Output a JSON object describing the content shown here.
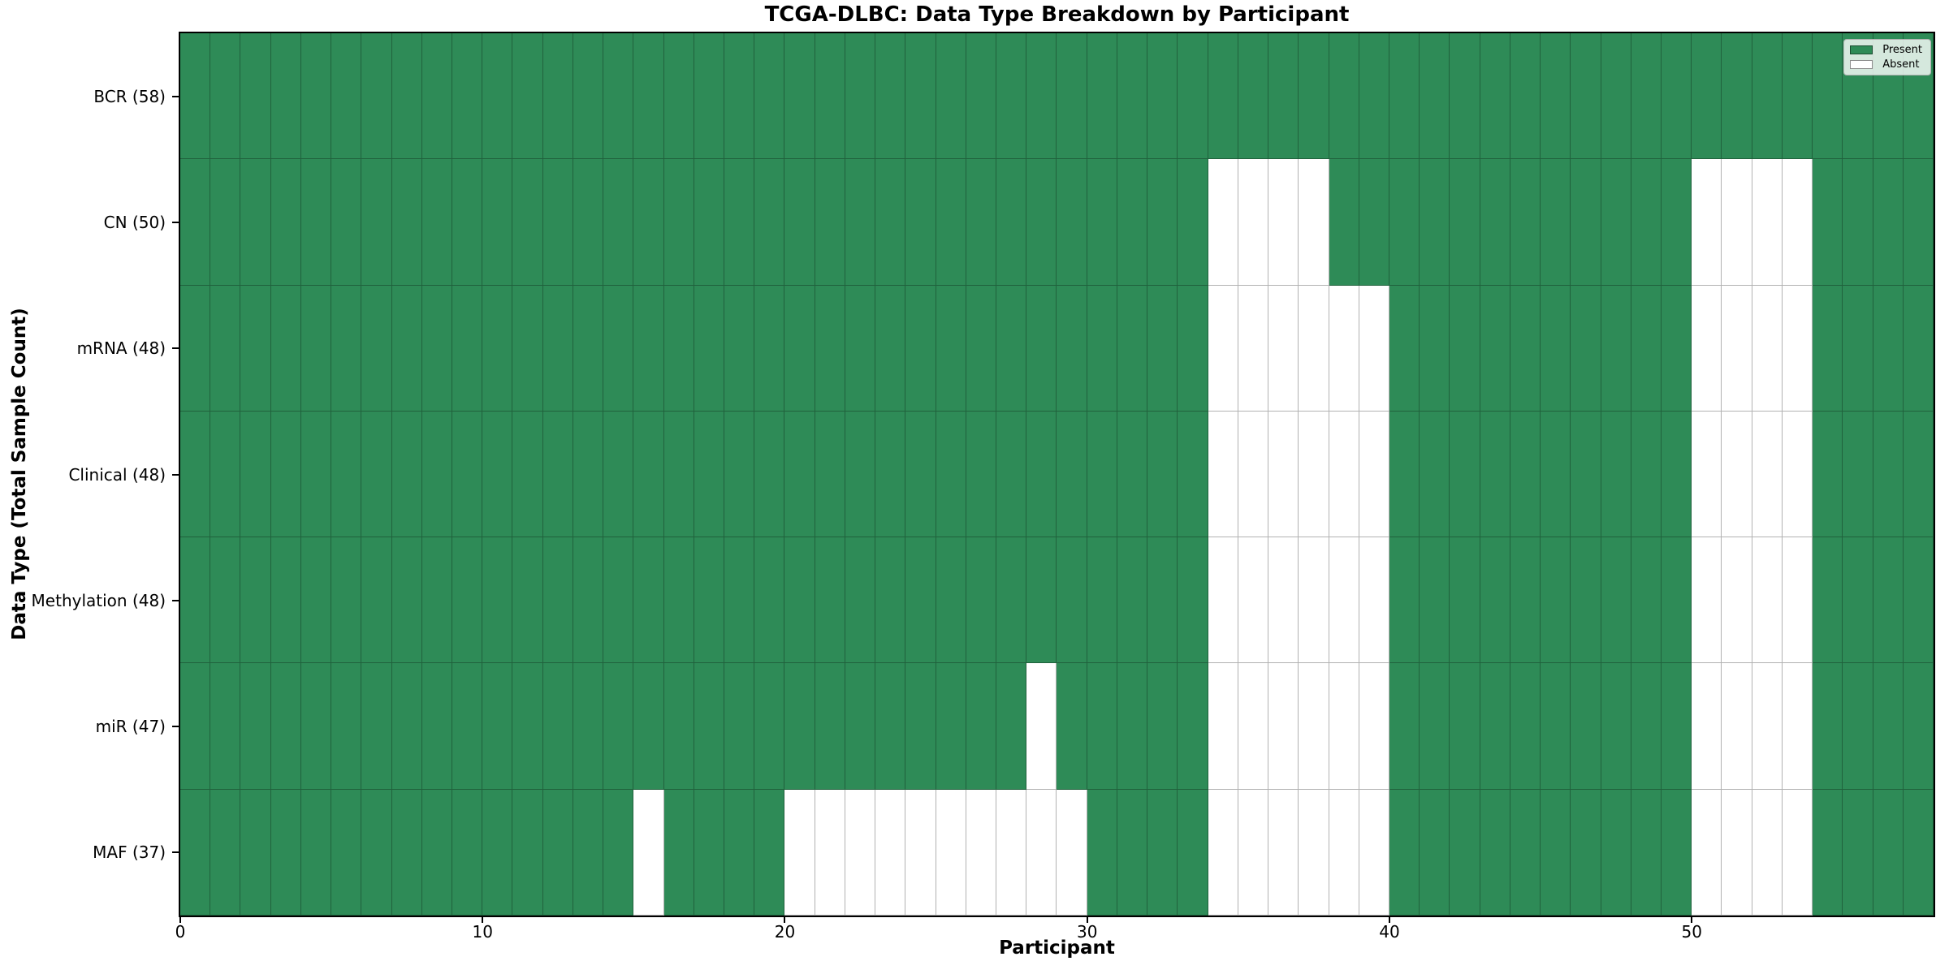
{
  "chart_data": {
    "type": "heatmap",
    "title": "TCGA-DLBC: Data Type Breakdown by Participant",
    "xlabel": "Participant",
    "ylabel": "Data Type (Total Sample Count)",
    "x_ticks": [
      0,
      10,
      20,
      30,
      40,
      50
    ],
    "x_range": [
      0,
      58
    ],
    "n_participants": 58,
    "grid": true,
    "legend_position": "upper right",
    "rows": [
      {
        "label": "BCR (58)",
        "data_type": "BCR",
        "present_count": 58,
        "absent_participants": []
      },
      {
        "label": "CN (50)",
        "data_type": "CN",
        "present_count": 50,
        "absent_participants": [
          34,
          35,
          36,
          37,
          50,
          51,
          52,
          53
        ]
      },
      {
        "label": "mRNA (48)",
        "data_type": "mRNA",
        "present_count": 48,
        "absent_participants": [
          34,
          35,
          36,
          37,
          38,
          39,
          50,
          51,
          52,
          53
        ]
      },
      {
        "label": "Clinical (48)",
        "data_type": "Clinical",
        "present_count": 48,
        "absent_participants": [
          34,
          35,
          36,
          37,
          38,
          39,
          50,
          51,
          52,
          53
        ]
      },
      {
        "label": "Methylation (48)",
        "data_type": "Methylation",
        "present_count": 48,
        "absent_participants": [
          34,
          35,
          36,
          37,
          38,
          39,
          50,
          51,
          52,
          53
        ]
      },
      {
        "label": "miR (47)",
        "data_type": "miR",
        "present_count": 47,
        "absent_participants": [
          28,
          34,
          35,
          36,
          37,
          38,
          39,
          50,
          51,
          52,
          53
        ]
      },
      {
        "label": "MAF (37)",
        "data_type": "MAF",
        "present_count": 37,
        "absent_participants": [
          15,
          20,
          21,
          22,
          23,
          24,
          25,
          26,
          27,
          28,
          29,
          34,
          35,
          36,
          37,
          38,
          39,
          50,
          51,
          52,
          53
        ]
      }
    ],
    "legend": [
      {
        "label": "Present",
        "color": "#2e8b57"
      },
      {
        "label": "Absent",
        "color": "#ffffff"
      }
    ],
    "colors": {
      "present": "#2e8b57",
      "absent": "#ffffff",
      "grid": "rgba(0,0,0,0.30)",
      "spine": "#000000",
      "text": "#000000",
      "legend_bg": "rgba(255,255,255,0.8)",
      "legend_border": "#b0b0b0"
    }
  }
}
